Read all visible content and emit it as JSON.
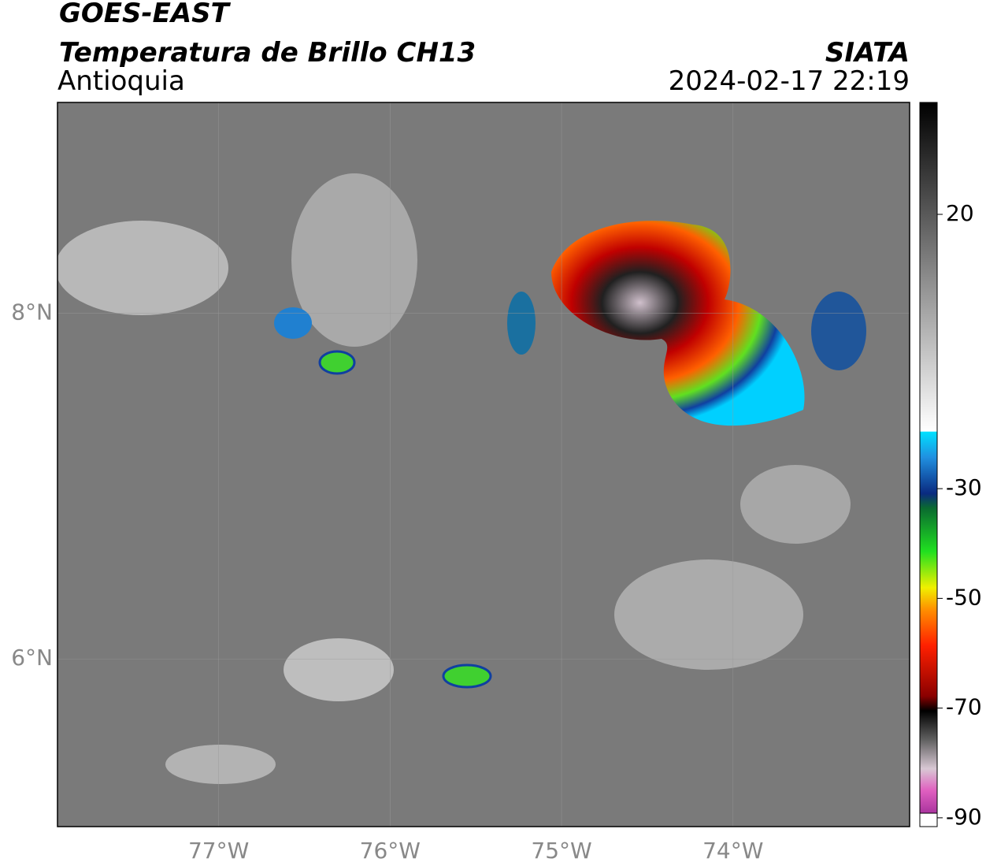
{
  "header": {
    "title": "GOES-EAST",
    "subtitle": "Temperatura de Brillo CH13",
    "region": "Antioquia",
    "source": "SIATA",
    "datetime": "2024-02-17 22:19"
  },
  "map": {
    "xlim": [
      -77.94,
      -72.97
    ],
    "ylim": [
      5.03,
      9.22
    ],
    "xticks": [
      {
        "value": -77,
        "label": "77°W"
      },
      {
        "value": -76,
        "label": "76°W"
      },
      {
        "value": -75,
        "label": "75°W"
      },
      {
        "value": -74,
        "label": "74°W"
      }
    ],
    "yticks": [
      {
        "value": 8,
        "label": "8°N"
      },
      {
        "value": 6,
        "label": "6°N"
      }
    ],
    "grid": true
  },
  "colorbar": {
    "lim": [
      -91.6,
      40.4
    ],
    "ticks": [
      20,
      -30,
      -50,
      -70,
      -90
    ]
  }
}
